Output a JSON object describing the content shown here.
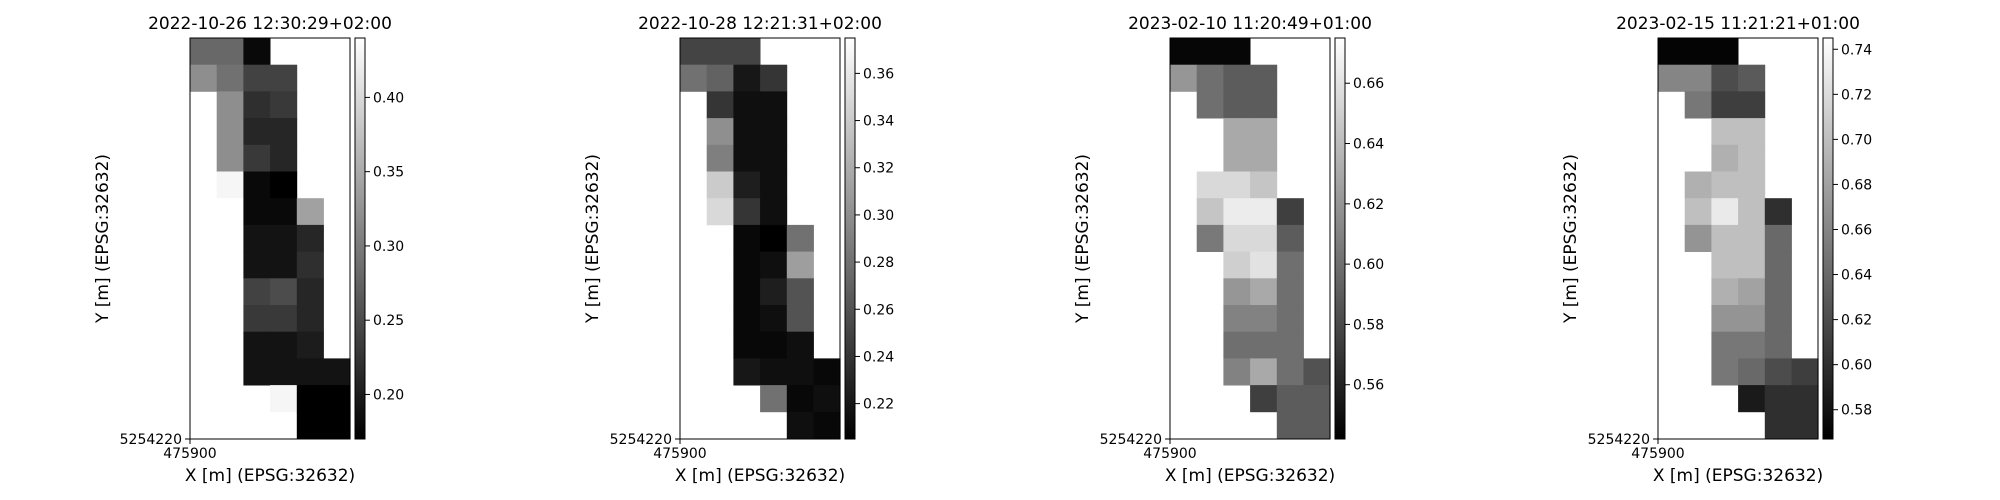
{
  "chart_data": [
    {
      "type": "heatmap",
      "title": "2022-10-26 12:30:29+02:00",
      "xlabel": "X [m] (EPSG:32632)",
      "ylabel": "Y [m] (EPSG:32632)",
      "x_tick_label": "475900",
      "y_tick_label": "5254220",
      "colormap": "gray",
      "vmin": 0.17,
      "vmax": 0.44,
      "colorbar_ticks": [
        "0.20",
        "0.25",
        "0.30",
        "0.35",
        "0.40"
      ],
      "colorbar_tick_values": [
        0.2,
        0.25,
        0.3,
        0.35,
        0.4
      ],
      "grid": [
        [
          0.28,
          0.28,
          0.18,
          null,
          null,
          null
        ],
        [
          0.32,
          0.29,
          0.24,
          0.24,
          null,
          null
        ],
        [
          null,
          0.32,
          0.22,
          0.23,
          null,
          null
        ],
        [
          null,
          0.32,
          0.21,
          0.21,
          null,
          null
        ],
        [
          null,
          0.32,
          0.23,
          0.21,
          null,
          null
        ],
        [
          null,
          0.43,
          0.18,
          0.17,
          null,
          null
        ],
        [
          null,
          0.44,
          0.18,
          0.18,
          0.34,
          null
        ],
        [
          null,
          null,
          0.19,
          0.19,
          0.21,
          null
        ],
        [
          null,
          null,
          0.19,
          0.19,
          0.22,
          null
        ],
        [
          null,
          null,
          0.24,
          0.25,
          0.21,
          null
        ],
        [
          null,
          null,
          0.23,
          0.23,
          0.21,
          null
        ],
        [
          null,
          null,
          0.19,
          0.19,
          0.2,
          null
        ],
        [
          null,
          null,
          0.19,
          0.19,
          0.19,
          0.19
        ],
        [
          null,
          null,
          null,
          0.43,
          0.17,
          0.17
        ],
        [
          null,
          null,
          null,
          null,
          0.17,
          0.17
        ]
      ]
    },
    {
      "type": "heatmap",
      "title": "2022-10-28 12:21:31+02:00",
      "xlabel": "X [m] (EPSG:32632)",
      "ylabel": "Y [m] (EPSG:32632)",
      "x_tick_label": "475900",
      "y_tick_label": "5254220",
      "colormap": "gray",
      "vmin": 0.205,
      "vmax": 0.375,
      "colorbar_ticks": [
        "0.22",
        "0.24",
        "0.26",
        "0.28",
        "0.30",
        "0.32",
        "0.34",
        "0.36"
      ],
      "colorbar_tick_values": [
        0.22,
        0.24,
        0.26,
        0.28,
        0.3,
        0.32,
        0.34,
        0.36
      ],
      "grid": [
        [
          0.25,
          0.25,
          0.25,
          null,
          null,
          null
        ],
        [
          0.28,
          0.27,
          0.22,
          0.24,
          null,
          null
        ],
        [
          null,
          0.24,
          0.215,
          0.215,
          null,
          null
        ],
        [
          null,
          0.3,
          0.215,
          0.215,
          null,
          null
        ],
        [
          null,
          0.29,
          0.215,
          0.215,
          null,
          null
        ],
        [
          null,
          0.34,
          0.225,
          0.215,
          null,
          null
        ],
        [
          null,
          0.35,
          0.24,
          0.215,
          null,
          null
        ],
        [
          null,
          null,
          0.21,
          0.205,
          0.28,
          null
        ],
        [
          null,
          null,
          0.21,
          0.215,
          0.31,
          null
        ],
        [
          null,
          null,
          0.21,
          0.225,
          0.26,
          null
        ],
        [
          null,
          null,
          0.21,
          0.215,
          0.26,
          null
        ],
        [
          null,
          null,
          0.21,
          0.21,
          0.215,
          null
        ],
        [
          null,
          null,
          0.22,
          0.215,
          0.215,
          0.21
        ],
        [
          null,
          null,
          null,
          0.28,
          0.21,
          0.215
        ],
        [
          null,
          null,
          null,
          null,
          0.215,
          0.21
        ]
      ]
    },
    {
      "type": "heatmap",
      "title": "2023-02-10 11:20:49+01:00",
      "xlabel": "X [m] (EPSG:32632)",
      "ylabel": "Y [m] (EPSG:32632)",
      "x_tick_label": "475900",
      "y_tick_label": "5254220",
      "colormap": "gray",
      "vmin": 0.542,
      "vmax": 0.675,
      "colorbar_ticks": [
        "0.56",
        "0.58",
        "0.60",
        "0.62",
        "0.64",
        "0.66"
      ],
      "colorbar_tick_values": [
        0.56,
        0.58,
        0.6,
        0.62,
        0.64,
        0.66
      ],
      "grid": [
        [
          0.545,
          0.545,
          0.545,
          null,
          null,
          null
        ],
        [
          0.62,
          0.6,
          0.59,
          0.59,
          null,
          null
        ],
        [
          null,
          0.6,
          0.59,
          0.59,
          null,
          null
        ],
        [
          null,
          null,
          0.63,
          0.63,
          null,
          null
        ],
        [
          null,
          null,
          0.63,
          0.63,
          null,
          null
        ],
        [
          null,
          0.655,
          0.655,
          0.645,
          null,
          null
        ],
        [
          null,
          0.645,
          0.665,
          0.665,
          0.575,
          null
        ],
        [
          null,
          0.605,
          0.655,
          0.655,
          0.59,
          null
        ],
        [
          null,
          null,
          0.65,
          0.66,
          0.6,
          null
        ],
        [
          null,
          null,
          0.62,
          0.63,
          0.6,
          null
        ],
        [
          null,
          null,
          0.61,
          0.61,
          0.6,
          null
        ],
        [
          null,
          null,
          0.6,
          0.6,
          0.6,
          null
        ],
        [
          null,
          null,
          0.61,
          0.63,
          0.6,
          0.585
        ],
        [
          null,
          null,
          null,
          0.575,
          0.59,
          0.59
        ],
        [
          null,
          null,
          null,
          null,
          0.59,
          0.59
        ]
      ]
    },
    {
      "type": "heatmap",
      "title": "2023-02-15 11:21:21+01:00",
      "xlabel": "X [m] (EPSG:32632)",
      "ylabel": "Y [m] (EPSG:32632)",
      "x_tick_label": "475900",
      "y_tick_label": "5254220",
      "colormap": "gray",
      "vmin": 0.567,
      "vmax": 0.745,
      "colorbar_ticks": [
        "0.58",
        "0.60",
        "0.62",
        "0.64",
        "0.66",
        "0.68",
        "0.70",
        "0.72",
        "0.74"
      ],
      "colorbar_tick_values": [
        0.58,
        0.6,
        0.62,
        0.64,
        0.66,
        0.68,
        0.7,
        0.72,
        0.74
      ],
      "grid": [
        [
          0.57,
          0.57,
          0.57,
          null,
          null,
          null
        ],
        [
          0.66,
          0.66,
          0.62,
          0.63,
          null,
          null
        ],
        [
          null,
          0.65,
          0.61,
          0.61,
          null,
          null
        ],
        [
          null,
          null,
          0.7,
          0.7,
          null,
          null
        ],
        [
          null,
          null,
          0.69,
          0.7,
          null,
          null
        ],
        [
          null,
          0.69,
          0.7,
          0.7,
          null,
          null
        ],
        [
          null,
          0.7,
          0.73,
          0.7,
          0.6,
          null
        ],
        [
          null,
          0.67,
          0.7,
          0.7,
          0.64,
          null
        ],
        [
          null,
          null,
          0.7,
          0.7,
          0.64,
          null
        ],
        [
          null,
          null,
          0.69,
          0.68,
          0.64,
          null
        ],
        [
          null,
          null,
          0.67,
          0.67,
          0.64,
          null
        ],
        [
          null,
          null,
          0.65,
          0.65,
          0.64,
          null
        ],
        [
          null,
          null,
          0.65,
          0.64,
          0.62,
          0.61
        ],
        [
          null,
          null,
          null,
          0.585,
          0.6,
          0.6
        ],
        [
          null,
          null,
          null,
          null,
          0.6,
          0.6
        ]
      ]
    }
  ]
}
